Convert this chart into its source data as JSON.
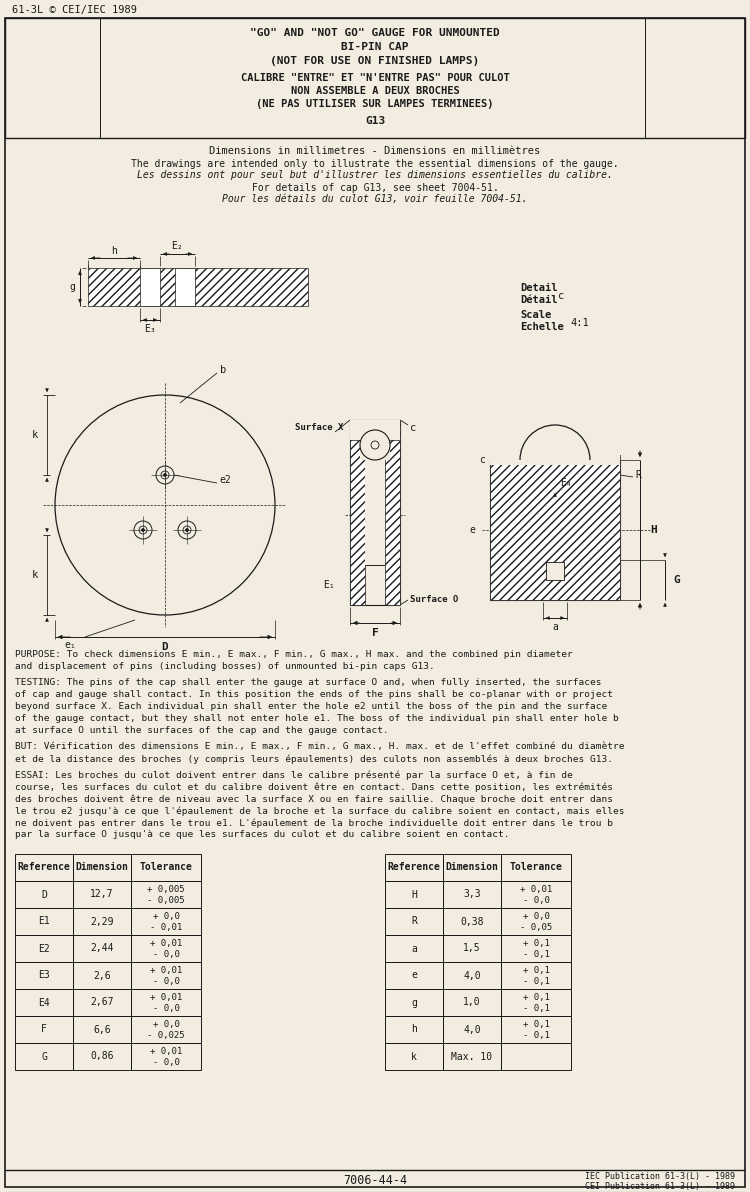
{
  "title_line1": "\"GO\" AND \"NOT GO\" GAUGE FOR UNMOUNTED",
  "title_line2": "BI-PIN CAP",
  "title_line3": "(NOT FOR USE ON FINISHED LAMPS)",
  "title_line4": "CALIBRE \"ENTRE\" ET \"N'ENTRE PAS\" POUR CULOT",
  "title_line5": "NON ASSEMBLE A DEUX BROCHES",
  "title_line6": "(NE PAS UTILISER SUR LAMPES TERMINEES)",
  "title_line7": "G13",
  "copyright": "61-3L © CEI/IEC 1989",
  "dim_note1": "Dimensions in millimetres - Dimensions en millimètres",
  "dim_note2": "The drawings are intended only to illustrate the essential dimensions of the gauge.",
  "dim_note3": "Les dessins ont pour seul but d'illustrer les dimensions essentielles du calibre.",
  "dim_note4": "For details of cap G13, see sheet 7004-51.",
  "dim_note5": "Pour les détails du culot G13, voir feuille 7004-51.",
  "detail_label1": "Detail",
  "detail_label2": "Détail",
  "detail_c": "c",
  "scale_label1": "Scale",
  "scale_label2": "Echelle",
  "scale_val": "4:1",
  "purpose_text": "PURPOSE: To check dimensions E min., E max., F min., G max., H max. and the combined pin diameter\nand displacement of pins (including bosses) of unmounted bi-pin caps G13.",
  "testing_text": "TESTING: The pins of the cap shall enter the gauge at surface O and, when fully inserted, the surfaces\nof cap and gauge shall contact. In this position the ends of the pins shall be co-planar with or project\nbeyond surface X. Each individual pin shall enter the hole e2 until the boss of the pin and the surface\nof the gauge contact, but they shall not enter hole e1. The boss of the individual pin shall enter hole b\nat surface O until the surfaces of the cap and the gauge contact.",
  "but_text": "BUT: Vérification des dimensions E min., E max., F min., G max., H. max. et de l'effet combiné du diamètre\net de la distance des broches (y compris leurs épaulements) des culots non assemblés à deux broches G13.",
  "essai_text": "ESSAI: Les broches du culot doivent entrer dans le calibre présenté par la surface O et, à fin de\ncourse, les surfaces du culot et du calibre doivent être en contact. Dans cette position, les extrémités\ndes broches doivent être de niveau avec la surface X ou en faire saillie. Chaque broche doit entrer dans\nle trou e2 jusqu'à ce que l'épaulement de la broche et la surface du calibre soient en contact, mais elles\nne doivent pas entrer dans le trou e1. L'épaulement de la broche individuelle doit entrer dans le trou b\npar la surface O jusqu'à ce que les surfaces du culot et du calibre soient en contact.",
  "table_left": [
    [
      "Reference",
      "Dimension",
      "Tolerance"
    ],
    [
      "D",
      "12,7",
      "+ 0,005\n- 0,005"
    ],
    [
      "E1",
      "2,29",
      "+ 0,0\n- 0,01"
    ],
    [
      "E2",
      "2,44",
      "+ 0,01\n- 0,0"
    ],
    [
      "E3",
      "2,6",
      "+ 0,01\n- 0,0"
    ],
    [
      "E4",
      "2,67",
      "+ 0,01\n- 0,0"
    ],
    [
      "F",
      "6,6",
      "+ 0,0\n- 0,025"
    ],
    [
      "G",
      "0,86",
      "+ 0,01\n- 0,0"
    ]
  ],
  "table_right": [
    [
      "Reference",
      "Dimension",
      "Tolerance"
    ],
    [
      "H",
      "3,3",
      "+ 0,01\n- 0,0"
    ],
    [
      "R",
      "0,38",
      "+ 0,0\n- 0,05"
    ],
    [
      "a",
      "1,5",
      "+ 0,1\n- 0,1"
    ],
    [
      "e",
      "4,0",
      "+ 0,1\n- 0,1"
    ],
    [
      "g",
      "1,0",
      "+ 0,1\n- 0,1"
    ],
    [
      "h",
      "4,0",
      "+ 0,1\n- 0,1"
    ],
    [
      "k",
      "Max. 10",
      ""
    ]
  ],
  "footer_center": "7006-44-4",
  "footer_right1": "IEC Publication 61-3(L) - 1989",
  "footer_right2": "CEI Publication 61-3(L) - 1989",
  "bg_color": "#f2ede0",
  "line_color": "#1a1a1a"
}
